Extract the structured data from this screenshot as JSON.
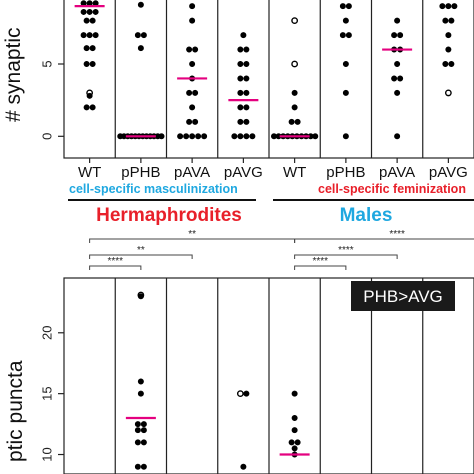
{
  "colors": {
    "median": "#e4007f",
    "hermaphrodites": "#e8202a",
    "males": "#1fa8e0",
    "masculinization": "#1fa8e0",
    "feminization": "#e8202a",
    "badge_bg": "#1a1a1a"
  },
  "chart_data": [
    {
      "type": "scatter",
      "ylabel": "# synaptic",
      "ylim": [
        -1.5,
        11.5
      ],
      "yticks": [
        "0",
        "5",
        "10"
      ],
      "categories": [
        "WT",
        "pPHB",
        "pAVA",
        "pAVG",
        "WT",
        "pPHB",
        "pAVA",
        "pAVG"
      ],
      "subtitles": [
        "cell-specific masculinization",
        "cell-specific feminization"
      ],
      "groups": [
        "Hermaphrodites",
        "Males"
      ],
      "series": [
        {
          "points": [
            {
              "x": 0,
              "y": 9.2
            },
            {
              "x": 0,
              "y": 9.2
            },
            {
              "x": 0,
              "y": 9.2
            },
            {
              "x": 0,
              "y": 8.6
            },
            {
              "x": 0,
              "y": 8.6
            },
            {
              "x": 0,
              "y": 8.6
            },
            {
              "x": 0,
              "y": 8.0
            },
            {
              "x": 0,
              "y": 8.0
            },
            {
              "x": 0,
              "y": 7.0
            },
            {
              "x": 0,
              "y": 7.0
            },
            {
              "x": 0,
              "y": 7.0
            },
            {
              "x": 0,
              "y": 6.1
            },
            {
              "x": 0,
              "y": 6.1
            },
            {
              "x": 0,
              "y": 5.0
            },
            {
              "x": 0,
              "y": 5.0
            },
            {
              "x": 0,
              "y": 3.0,
              "open": true
            },
            {
              "x": 0,
              "y": 2.8
            },
            {
              "x": 0,
              "y": 2.0
            },
            {
              "x": 0,
              "y": 2.0
            }
          ]
        },
        {
          "points": [
            {
              "x": 1,
              "y": 11.0
            },
            {
              "x": 1,
              "y": 9.1
            },
            {
              "x": 1,
              "y": 7.0
            },
            {
              "x": 1,
              "y": 7.0
            },
            {
              "x": 1,
              "y": 6.1
            },
            {
              "x": 1,
              "y": 0
            },
            {
              "x": 1,
              "y": 0
            },
            {
              "x": 1,
              "y": 0
            },
            {
              "x": 1,
              "y": 0
            },
            {
              "x": 1,
              "y": 0
            },
            {
              "x": 1,
              "y": 0
            },
            {
              "x": 1,
              "y": 0
            },
            {
              "x": 1,
              "y": 0
            },
            {
              "x": 1,
              "y": 0
            },
            {
              "x": 1,
              "y": 0
            },
            {
              "x": 1,
              "y": 0
            },
            {
              "x": 1,
              "y": 0
            }
          ]
        },
        {
          "points": [
            {
              "x": 2,
              "y": 11.0
            },
            {
              "x": 2,
              "y": 10.0
            },
            {
              "x": 2,
              "y": 10.0
            },
            {
              "x": 2,
              "y": 9.0
            },
            {
              "x": 2,
              "y": 8.0
            },
            {
              "x": 2,
              "y": 6.0
            },
            {
              "x": 2,
              "y": 6.0
            },
            {
              "x": 2,
              "y": 5.0
            },
            {
              "x": 2,
              "y": 4.0
            },
            {
              "x": 2,
              "y": 3.0
            },
            {
              "x": 2,
              "y": 3.0
            },
            {
              "x": 2,
              "y": 2.0
            },
            {
              "x": 2,
              "y": 1.0
            },
            {
              "x": 2,
              "y": 1.0
            },
            {
              "x": 2,
              "y": 0
            },
            {
              "x": 2,
              "y": 0
            },
            {
              "x": 2,
              "y": 0
            },
            {
              "x": 2,
              "y": 0
            },
            {
              "x": 2,
              "y": 0
            }
          ]
        },
        {
          "points": [
            {
              "x": 3,
              "y": 9.8
            },
            {
              "x": 3,
              "y": 7.0
            },
            {
              "x": 3,
              "y": 6.0
            },
            {
              "x": 3,
              "y": 6.0
            },
            {
              "x": 3,
              "y": 5.0
            },
            {
              "x": 3,
              "y": 5.0
            },
            {
              "x": 3,
              "y": 4.0
            },
            {
              "x": 3,
              "y": 4.0
            },
            {
              "x": 3,
              "y": 3.0
            },
            {
              "x": 3,
              "y": 3.0
            },
            {
              "x": 3,
              "y": 2.0
            },
            {
              "x": 3,
              "y": 2.0
            },
            {
              "x": 3,
              "y": 1.0
            },
            {
              "x": 3,
              "y": 1.0
            },
            {
              "x": 3,
              "y": 0
            },
            {
              "x": 3,
              "y": 0
            },
            {
              "x": 3,
              "y": 0
            },
            {
              "x": 3,
              "y": 0
            }
          ]
        },
        {
          "points": [
            {
              "x": 4,
              "y": 8.0,
              "open": true
            },
            {
              "x": 4,
              "y": 5.0,
              "open": true
            },
            {
              "x": 4,
              "y": 3.0
            },
            {
              "x": 4,
              "y": 2.0
            },
            {
              "x": 4,
              "y": 1.0
            },
            {
              "x": 4,
              "y": 1.0
            },
            {
              "x": 4,
              "y": 0
            },
            {
              "x": 4,
              "y": 0
            },
            {
              "x": 4,
              "y": 0
            },
            {
              "x": 4,
              "y": 0
            },
            {
              "x": 4,
              "y": 0
            },
            {
              "x": 4,
              "y": 0
            },
            {
              "x": 4,
              "y": 0
            },
            {
              "x": 4,
              "y": 0
            },
            {
              "x": 4,
              "y": 0
            },
            {
              "x": 4,
              "y": 0
            }
          ]
        },
        {
          "points": [
            {
              "x": 5,
              "y": 11.0
            },
            {
              "x": 5,
              "y": 11.0
            },
            {
              "x": 5,
              "y": 10.0
            },
            {
              "x": 5,
              "y": 10.0
            },
            {
              "x": 5,
              "y": 10.0
            },
            {
              "x": 5,
              "y": 9.0
            },
            {
              "x": 5,
              "y": 9.0
            },
            {
              "x": 5,
              "y": 8.0
            },
            {
              "x": 5,
              "y": 7.0
            },
            {
              "x": 5,
              "y": 7.0
            },
            {
              "x": 5,
              "y": 5.0
            },
            {
              "x": 5,
              "y": 3.0
            },
            {
              "x": 5,
              "y": 0
            }
          ]
        },
        {
          "points": [
            {
              "x": 6,
              "y": 11.0
            },
            {
              "x": 6,
              "y": 8.0
            },
            {
              "x": 6,
              "y": 7.0
            },
            {
              "x": 6,
              "y": 7.0
            },
            {
              "x": 6,
              "y": 6.0
            },
            {
              "x": 6,
              "y": 6.0
            },
            {
              "x": 6,
              "y": 5.0
            },
            {
              "x": 6,
              "y": 4.0
            },
            {
              "x": 6,
              "y": 4.0
            },
            {
              "x": 6,
              "y": 3.0
            },
            {
              "x": 6,
              "y": 0
            }
          ]
        },
        {
          "points": [
            {
              "x": 7,
              "y": 11.0
            },
            {
              "x": 7,
              "y": 11.0
            },
            {
              "x": 7,
              "y": 10.0
            },
            {
              "x": 7,
              "y": 10.0
            },
            {
              "x": 7,
              "y": 10.0
            },
            {
              "x": 7,
              "y": 9.0
            },
            {
              "x": 7,
              "y": 9.0
            },
            {
              "x": 7,
              "y": 9.0
            },
            {
              "x": 7,
              "y": 8.0
            },
            {
              "x": 7,
              "y": 8.0
            },
            {
              "x": 7,
              "y": 7.0
            },
            {
              "x": 7,
              "y": 6.0
            },
            {
              "x": 7,
              "y": 5.0
            },
            {
              "x": 7,
              "y": 5.0
            },
            {
              "x": 7,
              "y": 3.0,
              "open": true
            }
          ]
        }
      ],
      "medians": [
        9,
        0,
        4,
        2.5,
        0,
        10,
        6,
        9.5
      ]
    },
    {
      "type": "scatter",
      "ylabel": "ptic puncta",
      "ylim": [
        8.4,
        24.5
      ],
      "yticks": [
        "10",
        "15",
        "20"
      ],
      "badge": "PHB>AVG",
      "significance": [
        {
          "from": 0,
          "to": 4,
          "label": "**"
        },
        {
          "from": 0,
          "to": 2,
          "label": "**"
        },
        {
          "from": 0,
          "to": 1,
          "label": "****"
        },
        {
          "from": 4,
          "to": 8,
          "label": "****"
        },
        {
          "from": 4,
          "to": 6,
          "label": "****"
        },
        {
          "from": 4,
          "to": 5,
          "label": "****"
        }
      ],
      "series": [
        {
          "points": [
            {
              "x": 1,
              "y": 23.1,
              "open": true
            },
            {
              "x": 1,
              "y": 23.0
            },
            {
              "x": 1,
              "y": 16.0
            },
            {
              "x": 1,
              "y": 15.0
            },
            {
              "x": 1,
              "y": 12.5
            },
            {
              "x": 1,
              "y": 12.5
            },
            {
              "x": 1,
              "y": 12.0
            },
            {
              "x": 1,
              "y": 12.0
            },
            {
              "x": 1,
              "y": 11.0
            },
            {
              "x": 1,
              "y": 11.0
            },
            {
              "x": 1,
              "y": 9.0
            },
            {
              "x": 1,
              "y": 9.0
            }
          ]
        },
        {
          "points": [
            {
              "x": 3,
              "y": 15.0,
              "open": true
            },
            {
              "x": 3,
              "y": 15.0
            },
            {
              "x": 3,
              "y": 9.0
            }
          ]
        },
        {
          "points": [
            {
              "x": 4,
              "y": 15.0
            },
            {
              "x": 4,
              "y": 13.0
            },
            {
              "x": 4,
              "y": 12.0
            },
            {
              "x": 4,
              "y": 11.0
            },
            {
              "x": 4,
              "y": 11.0
            },
            {
              "x": 4,
              "y": 10.5
            },
            {
              "x": 4,
              "y": 10.0
            }
          ]
        }
      ],
      "medians": [
        null,
        13,
        null,
        null,
        10,
        null,
        null,
        null
      ]
    }
  ]
}
